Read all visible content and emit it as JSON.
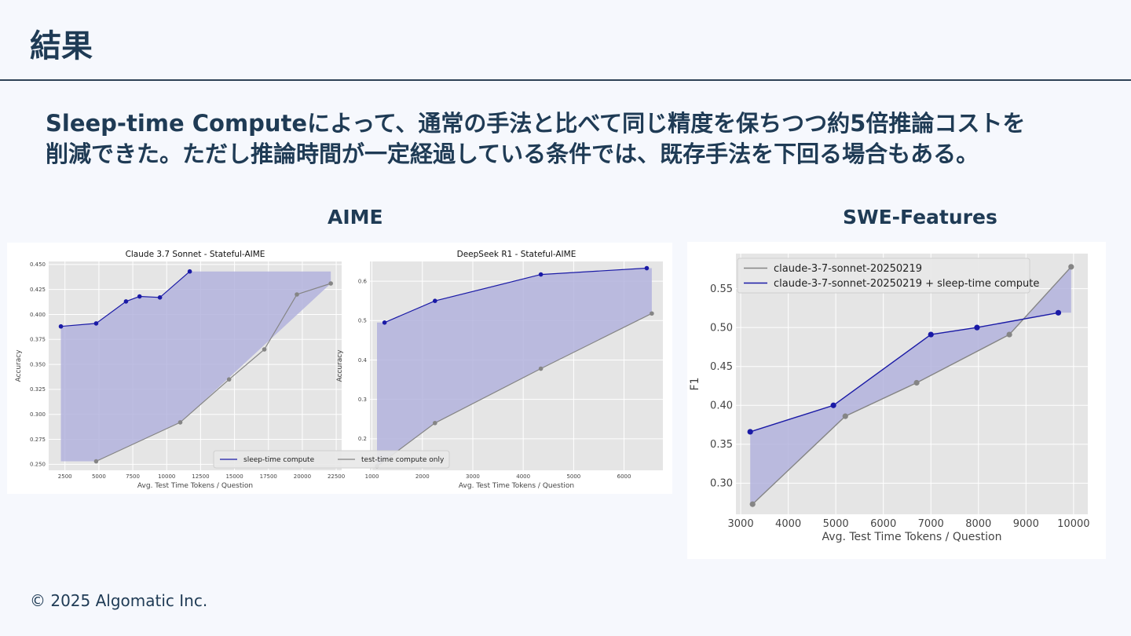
{
  "slide": {
    "title": "結果",
    "headline_line1": "Sleep-time Computeによって、通常の手法と比べて同じ精度を保ちつつ約5倍推論コストを",
    "headline_line2": "削減できた。ただし推論時間が一定経過している条件では、既存手法を下回る場合もある。",
    "label_aime": "AIME",
    "label_swe": "SWE-Features",
    "footer": "© 2025 Algomatic Inc."
  },
  "colors": {
    "sleep": "#1a1aa6",
    "test": "#858585",
    "fill": "#b3b3dd",
    "plot_bg": "#e5e5e5"
  },
  "chart_data": [
    {
      "id": "claude",
      "type": "line",
      "title": "Claude 3.7 Sonnet - Stateful-AIME",
      "xlabel": "Avg. Test Time Tokens / Question",
      "ylabel": "Accuracy",
      "xlim": [
        1300,
        22900
      ],
      "ylim": [
        0.244,
        0.453
      ],
      "xticks": [
        2500,
        5000,
        7500,
        10000,
        12500,
        15000,
        17500,
        20000,
        22500
      ],
      "yticks": [
        0.25,
        0.275,
        0.3,
        0.325,
        0.35,
        0.375,
        0.4,
        0.425,
        0.45
      ],
      "ytick_decimals": 3,
      "grid": true,
      "legend_position": "lower-center",
      "legend_ncol": 2,
      "fill_between": true,
      "series": [
        {
          "name": "sleep-time compute",
          "color_key": "sleep",
          "x": [
            2200,
            4800,
            7000,
            8000,
            9500,
            11700
          ],
          "y": [
            0.388,
            0.391,
            0.413,
            0.418,
            0.417,
            0.443
          ]
        },
        {
          "name": "test-time compute only",
          "color_key": "test",
          "x": [
            4800,
            11000,
            14600,
            17200,
            19600,
            22100
          ],
          "y": [
            0.253,
            0.292,
            0.335,
            0.365,
            0.42,
            0.431
          ]
        }
      ]
    },
    {
      "id": "deepseek",
      "type": "line",
      "title": "DeepSeek R1 - Stateful-AIME",
      "xlabel": "Avg. Test Time Tokens / Question",
      "ylabel": "Accuracy",
      "xlim": [
        960,
        6770
      ],
      "ylim": [
        0.12,
        0.65
      ],
      "xticks": [
        1000,
        2000,
        3000,
        4000,
        5000,
        6000
      ],
      "yticks": [
        0.2,
        0.3,
        0.4,
        0.5,
        0.6
      ],
      "ytick_decimals": 1,
      "grid": true,
      "fill_between": true,
      "series": [
        {
          "name": "sleep-time compute",
          "color_key": "sleep",
          "x": [
            1250,
            2250,
            4350,
            6450
          ],
          "y": [
            0.495,
            0.55,
            0.617,
            0.633
          ]
        },
        {
          "name": "test-time compute only",
          "color_key": "test",
          "x": [
            1100,
            2250,
            4350,
            6550
          ],
          "y": [
            0.13,
            0.24,
            0.378,
            0.518
          ]
        }
      ]
    },
    {
      "id": "swe",
      "type": "line",
      "title": "",
      "xlabel": "Avg. Test Time Tokens / Question",
      "ylabel": "F1",
      "xlim": [
        2900,
        10300
      ],
      "ylim": [
        0.26,
        0.595
      ],
      "xticks": [
        3000,
        4000,
        5000,
        6000,
        7000,
        8000,
        9000,
        10000
      ],
      "yticks": [
        0.3,
        0.35,
        0.4,
        0.45,
        0.5,
        0.55
      ],
      "ytick_decimals": 2,
      "grid": true,
      "legend_position": "upper-left",
      "legend_ncol": 1,
      "fill_between": true,
      "series": [
        {
          "name": "claude-3-7-sonnet-20250219",
          "color_key": "test",
          "x": [
            3250,
            5200,
            6700,
            8650,
            9950
          ],
          "y": [
            0.273,
            0.386,
            0.429,
            0.491,
            0.578
          ]
        },
        {
          "name": "claude-3-7-sonnet-20250219 + sleep-time compute",
          "color_key": "sleep",
          "x": [
            3200,
            4950,
            7000,
            7970,
            9680
          ],
          "y": [
            0.366,
            0.4,
            0.491,
            0.5,
            0.519
          ]
        }
      ]
    }
  ]
}
